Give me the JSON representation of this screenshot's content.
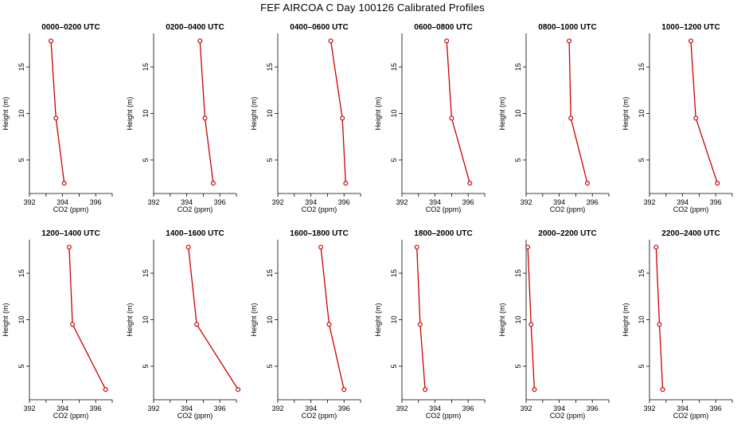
{
  "title": "FEF  AIRCOA C  Day 100126  Calibrated Profiles",
  "colors": {
    "series": "#cc0000",
    "axis": "#000000"
  },
  "chart_data": [
    {
      "type": "line",
      "title": "0000–0200 UTC",
      "xlabel": "CO2 (ppm)",
      "ylabel": "Height (m)",
      "xlim": [
        392,
        397
      ],
      "xticks": [
        392,
        394,
        396
      ],
      "yticks": [
        5,
        10,
        15
      ],
      "points": [
        {
          "x": 393.3,
          "y": 17.8
        },
        {
          "x": 393.6,
          "y": 9.5
        },
        {
          "x": 394.1,
          "y": 2.5
        }
      ]
    },
    {
      "type": "line",
      "title": "0200–0400 UTC",
      "xlabel": "CO2 (ppm)",
      "ylabel": "Height (m)",
      "xlim": [
        392,
        397
      ],
      "xticks": [
        392,
        394,
        396
      ],
      "yticks": [
        5,
        10,
        15
      ],
      "points": [
        {
          "x": 394.8,
          "y": 17.8
        },
        {
          "x": 395.1,
          "y": 9.5
        },
        {
          "x": 395.6,
          "y": 2.5
        }
      ]
    },
    {
      "type": "line",
      "title": "0400–0600 UTC",
      "xlabel": "CO2 (ppm)",
      "ylabel": "Height (m)",
      "xlim": [
        392,
        397
      ],
      "xticks": [
        392,
        394,
        396
      ],
      "yticks": [
        5,
        10,
        15
      ],
      "points": [
        {
          "x": 395.2,
          "y": 17.8
        },
        {
          "x": 395.9,
          "y": 9.5
        },
        {
          "x": 396.1,
          "y": 2.5
        }
      ]
    },
    {
      "type": "line",
      "title": "0600–0800 UTC",
      "xlabel": "CO2 (ppm)",
      "ylabel": "Height (m)",
      "xlim": [
        392,
        397
      ],
      "xticks": [
        392,
        394,
        396
      ],
      "yticks": [
        5,
        10,
        15
      ],
      "points": [
        {
          "x": 394.7,
          "y": 17.8
        },
        {
          "x": 395.0,
          "y": 9.5
        },
        {
          "x": 396.1,
          "y": 2.5
        }
      ]
    },
    {
      "type": "line",
      "title": "0800–1000 UTC",
      "xlabel": "CO2 (ppm)",
      "ylabel": "Height (m)",
      "xlim": [
        392,
        397
      ],
      "xticks": [
        392,
        394,
        396
      ],
      "yticks": [
        5,
        10,
        15
      ],
      "points": [
        {
          "x": 394.6,
          "y": 17.8
        },
        {
          "x": 394.7,
          "y": 9.5
        },
        {
          "x": 395.7,
          "y": 2.5
        }
      ]
    },
    {
      "type": "line",
      "title": "1000–1200 UTC",
      "xlabel": "CO2 (ppm)",
      "ylabel": "Height (m)",
      "xlim": [
        392,
        397
      ],
      "xticks": [
        392,
        394,
        396
      ],
      "yticks": [
        5,
        10,
        15
      ],
      "points": [
        {
          "x": 394.5,
          "y": 17.8
        },
        {
          "x": 394.8,
          "y": 9.5
        },
        {
          "x": 396.1,
          "y": 2.5
        }
      ]
    },
    {
      "type": "line",
      "title": "1200–1400 UTC",
      "xlabel": "CO2 (ppm)",
      "ylabel": "Height (m)",
      "xlim": [
        392,
        397
      ],
      "xticks": [
        392,
        394,
        396
      ],
      "yticks": [
        5,
        10,
        15
      ],
      "points": [
        {
          "x": 394.4,
          "y": 17.8
        },
        {
          "x": 394.6,
          "y": 9.5
        },
        {
          "x": 396.6,
          "y": 2.5
        }
      ]
    },
    {
      "type": "line",
      "title": "1400–1600 UTC",
      "xlabel": "CO2 (ppm)",
      "ylabel": "Height (m)",
      "xlim": [
        392,
        397
      ],
      "xticks": [
        392,
        394,
        396
      ],
      "yticks": [
        5,
        10,
        15
      ],
      "points": [
        {
          "x": 394.1,
          "y": 17.8
        },
        {
          "x": 394.6,
          "y": 9.5
        },
        {
          "x": 397.1,
          "y": 2.5
        }
      ]
    },
    {
      "type": "line",
      "title": "1600–1800 UTC",
      "xlabel": "CO2 (ppm)",
      "ylabel": "Height (m)",
      "xlim": [
        392,
        397
      ],
      "xticks": [
        392,
        394,
        396
      ],
      "yticks": [
        5,
        10,
        15
      ],
      "points": [
        {
          "x": 394.6,
          "y": 17.8
        },
        {
          "x": 395.1,
          "y": 9.5
        },
        {
          "x": 396.0,
          "y": 2.5
        }
      ]
    },
    {
      "type": "line",
      "title": "1800–2000 UTC",
      "xlabel": "CO2 (ppm)",
      "ylabel": "Height (m)",
      "xlim": [
        392,
        397
      ],
      "xticks": [
        392,
        394,
        396
      ],
      "yticks": [
        5,
        10,
        15
      ],
      "points": [
        {
          "x": 392.9,
          "y": 17.8
        },
        {
          "x": 393.1,
          "y": 9.5
        },
        {
          "x": 393.4,
          "y": 2.5
        }
      ]
    },
    {
      "type": "line",
      "title": "2000–2200 UTC",
      "xlabel": "CO2 (ppm)",
      "ylabel": "Height (m)",
      "xlim": [
        392,
        397
      ],
      "xticks": [
        392,
        394,
        396
      ],
      "yticks": [
        5,
        10,
        15
      ],
      "points": [
        {
          "x": 392.1,
          "y": 17.8
        },
        {
          "x": 392.3,
          "y": 9.5
        },
        {
          "x": 392.5,
          "y": 2.5
        }
      ]
    },
    {
      "type": "line",
      "title": "2200–2400 UTC",
      "xlabel": "CO2 (ppm)",
      "ylabel": "Height (m)",
      "xlim": [
        392,
        397
      ],
      "xticks": [
        392,
        394,
        396
      ],
      "yticks": [
        5,
        10,
        15
      ],
      "points": [
        {
          "x": 392.4,
          "y": 17.8
        },
        {
          "x": 392.6,
          "y": 9.5
        },
        {
          "x": 392.8,
          "y": 2.5
        }
      ]
    }
  ]
}
